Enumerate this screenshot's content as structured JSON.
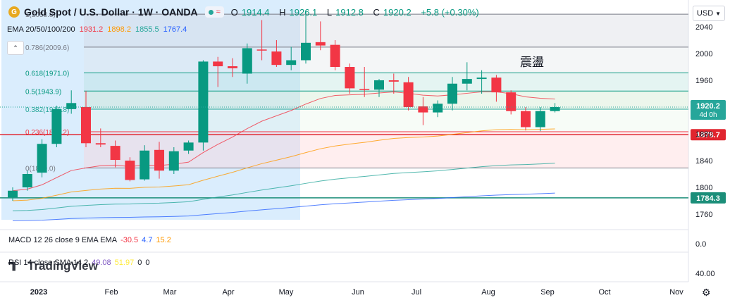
{
  "header": {
    "symbol_icon": "gold-coin-icon",
    "title": "Gold Spot / U.S. Dollar · 1W · OANDA",
    "ohlc": {
      "o_label": "O",
      "o": "1914.4",
      "h_label": "H",
      "h": "1926.1",
      "l_label": "L",
      "l": "1912.8",
      "c_label": "C",
      "c": "1920.2",
      "change": "+5.8 (+0.30%)"
    }
  },
  "ema_legend": {
    "label": "EMA 20/50/100/200",
    "v1": "1931.2",
    "v2": "1898.2",
    "v3": "1855.5",
    "v4": "1767.4"
  },
  "currency": "USD",
  "annotation_text": "震盪",
  "macd_legend": {
    "label": "MACD 12 26 close 9 EMA EMA",
    "v1": "-30.5",
    "v2": "4.7",
    "v3": "15.2"
  },
  "rsi_legend": {
    "label": "RSI 14 close SMA 14 2",
    "v1": "49.08",
    "v2": "51.97",
    "v3": "0",
    "v4": "0"
  },
  "watermark": "TradingView",
  "chart_data": {
    "type": "candlestick",
    "timeframe": "1W",
    "price_axis": {
      "min": 1740,
      "max": 2080,
      "ticks": [
        2040,
        2000,
        1960,
        1920,
        1880,
        1840,
        1800,
        1760
      ]
    },
    "time_axis": {
      "labels": [
        "2023",
        "Feb",
        "Mar",
        "Apr",
        "May",
        "Jun",
        "Jul",
        "Aug",
        "Sep",
        "Oct",
        "Nov"
      ]
    },
    "candles": [
      {
        "o": 1785,
        "h": 1800,
        "l": 1780,
        "c": 1795
      },
      {
        "o": 1800,
        "h": 1825,
        "l": 1795,
        "c": 1820
      },
      {
        "o": 1822,
        "h": 1872,
        "l": 1815,
        "c": 1865
      },
      {
        "o": 1865,
        "h": 1922,
        "l": 1860,
        "c": 1917
      },
      {
        "o": 1917,
        "h": 1945,
        "l": 1910,
        "c": 1926
      },
      {
        "o": 1920,
        "h": 1944,
        "l": 1860,
        "c": 1866
      },
      {
        "o": 1866,
        "h": 1888,
        "l": 1860,
        "c": 1864
      },
      {
        "o": 1862,
        "h": 1870,
        "l": 1830,
        "c": 1841
      },
      {
        "o": 1840,
        "h": 1845,
        "l": 1809,
        "c": 1811
      },
      {
        "o": 1812,
        "h": 1863,
        "l": 1810,
        "c": 1855
      },
      {
        "o": 1856,
        "h": 1868,
        "l": 1813,
        "c": 1825
      },
      {
        "o": 1825,
        "h": 1860,
        "l": 1820,
        "c": 1854
      },
      {
        "o": 1855,
        "h": 1870,
        "l": 1850,
        "c": 1867
      },
      {
        "o": 1867,
        "h": 1990,
        "l": 1855,
        "c": 1988
      },
      {
        "o": 1988,
        "h": 1995,
        "l": 1950,
        "c": 1981
      },
      {
        "o": 1981,
        "h": 1993,
        "l": 1965,
        "c": 1978
      },
      {
        "o": 1970,
        "h": 2015,
        "l": 1955,
        "c": 2008
      },
      {
        "o": 2006,
        "h": 2050,
        "l": 1990,
        "c": 2005
      },
      {
        "o": 2003,
        "h": 2020,
        "l": 1980,
        "c": 1983
      },
      {
        "o": 1983,
        "h": 2010,
        "l": 1975,
        "c": 1990
      },
      {
        "o": 1990,
        "h": 2065,
        "l": 1985,
        "c": 2016
      },
      {
        "o": 2017,
        "h": 2048,
        "l": 2005,
        "c": 2012
      },
      {
        "o": 2013,
        "h": 2020,
        "l": 1975,
        "c": 1980
      },
      {
        "o": 1980,
        "h": 1985,
        "l": 1940,
        "c": 1948
      },
      {
        "o": 1947,
        "h": 1980,
        "l": 1935,
        "c": 1946
      },
      {
        "o": 1946,
        "h": 1962,
        "l": 1935,
        "c": 1960
      },
      {
        "o": 1960,
        "h": 1970,
        "l": 1940,
        "c": 1958
      },
      {
        "o": 1957,
        "h": 1965,
        "l": 1915,
        "c": 1920
      },
      {
        "o": 1921,
        "h": 1935,
        "l": 1893,
        "c": 1912
      },
      {
        "o": 1912,
        "h": 1930,
        "l": 1905,
        "c": 1925
      },
      {
        "o": 1925,
        "h": 1965,
        "l": 1915,
        "c": 1955
      },
      {
        "o": 1955,
        "h": 1987,
        "l": 1945,
        "c": 1962
      },
      {
        "o": 1962,
        "h": 1975,
        "l": 1940,
        "c": 1964
      },
      {
        "o": 1964,
        "h": 1968,
        "l": 1928,
        "c": 1942
      },
      {
        "o": 1942,
        "h": 1945,
        "l": 1909,
        "c": 1914
      },
      {
        "o": 1914,
        "h": 1920,
        "l": 1885,
        "c": 1890
      },
      {
        "o": 1890,
        "h": 1920,
        "l": 1884,
        "c": 1914
      },
      {
        "o": 1914,
        "h": 1926,
        "l": 1912,
        "c": 1920
      }
    ],
    "fibonacci": [
      {
        "label": "1(2058.8)",
        "level": 2058.8,
        "color": "#787b86"
      },
      {
        "label": "0.786(2009.6)",
        "level": 2009.6,
        "color": "#787b86"
      },
      {
        "label": "0.618(1971.0)",
        "level": 1971.0,
        "color": "#089981"
      },
      {
        "label": "0.5(1943.9)",
        "level": 1943.9,
        "color": "#089981"
      },
      {
        "label": "0.382(1916.8)",
        "level": 1916.8,
        "color": "#26a69a"
      },
      {
        "label": "0.236(1883.2)",
        "level": 1883.2,
        "color": "#f23645"
      },
      {
        "label": "0(1829.0)",
        "level": 1829.0,
        "color": "#787b86"
      }
    ],
    "horizontal_levels": [
      {
        "label": "1878.7",
        "level": 1878.7,
        "color": "#e0252f"
      },
      {
        "label": "1784.3",
        "level": 1784.3,
        "color": "#1b8e79"
      }
    ],
    "last_price": {
      "value": "1920.2",
      "countdown": "4d 0h",
      "color": "#26a69a"
    },
    "macd_axis_tick": "0.0",
    "rsi_axis_tick": "40.00"
  }
}
